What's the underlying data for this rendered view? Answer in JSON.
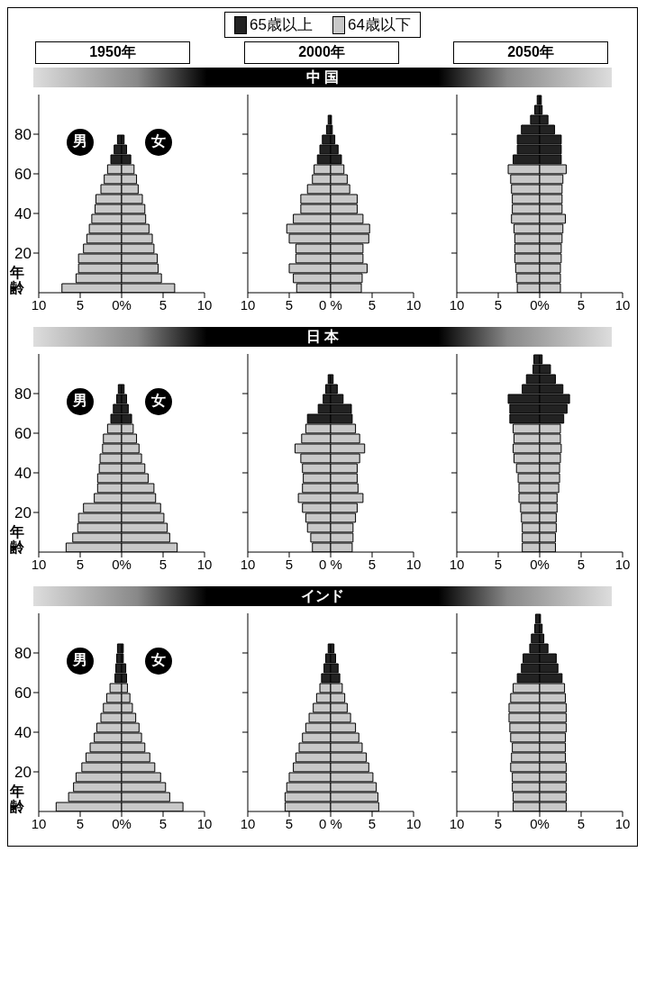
{
  "chart_data": [
    {
      "type": "bar",
      "orientation": "horizontal",
      "stacked": true,
      "subtitle": "1950年",
      "ylabel": "年齢",
      "annotations": [
        "男",
        "女"
      ],
      "legend": "top",
      "x": [
        2.5,
        7.5,
        12.5,
        17.5,
        22.5,
        27.5,
        32.5,
        37.5,
        42.5,
        47.5,
        52.5,
        57.5,
        62.5,
        67.5,
        72.5,
        77.5
      ],
      "xlim": [
        -10,
        10
      ],
      "xticks": [
        {
          "value": -10,
          "label": "10"
        },
        {
          "value": -5,
          "label": "5"
        },
        {
          "value": 0,
          "label": "0%"
        },
        {
          "value": 5,
          "label": "5"
        },
        {
          "value": 10,
          "label": "10"
        }
      ],
      "ylim": [
        0,
        100
      ],
      "yticks": [
        20,
        40,
        60,
        80
      ],
      "series": [
        {
          "name": "65歳以上",
          "color": "#222222",
          "values": [
            null,
            null,
            null,
            null,
            null,
            null,
            null,
            null,
            null,
            null,
            null,
            null,
            null,
            -1.3,
            -0.9,
            -0.5
          ]
        },
        {
          "name": "64歳以下",
          "color": "#c8c8c8",
          "values": [
            -7.2,
            -5.5,
            -5.2,
            -5.2,
            -4.6,
            -4.2,
            -3.9,
            -3.6,
            -3.2,
            -3.1,
            -2.5,
            -2.1,
            -1.7,
            null,
            null,
            null
          ]
        },
        {
          "color": "#222222",
          "values": [
            null,
            null,
            null,
            null,
            null,
            null,
            null,
            null,
            null,
            null,
            null,
            null,
            null,
            1.1,
            0.6,
            0.3
          ]
        },
        {
          "color": "#c8c8c8",
          "values": [
            6.4,
            4.8,
            4.4,
            4.3,
            3.9,
            3.7,
            3.3,
            2.9,
            2.8,
            2.5,
            2.0,
            1.8,
            1.5,
            null,
            null,
            null
          ]
        }
      ]
    },
    {
      "type": "bar",
      "orientation": "horizontal",
      "stacked": true,
      "title": "中 国",
      "subtitle": "2000年",
      "tick_labels": "x",
      "x": [
        2.5,
        7.5,
        12.5,
        17.5,
        22.5,
        27.5,
        32.5,
        37.5,
        42.5,
        47.5,
        52.5,
        57.5,
        62.5,
        67.5,
        72.5,
        77.5,
        82.5,
        87.5
      ],
      "xlim": [
        -10,
        10
      ],
      "xticks": [
        {
          "value": -10,
          "label": "10"
        },
        {
          "value": -5,
          "label": "5"
        },
        {
          "value": 0,
          "label": "0 %"
        },
        {
          "value": 5,
          "label": "5"
        },
        {
          "value": 10,
          "label": "10"
        }
      ],
      "ylim": [
        0,
        100
      ],
      "yticks": [
        {
          "value": 20,
          "label": null
        },
        {
          "value": 40,
          "label": null
        },
        {
          "value": 60,
          "label": null
        },
        {
          "value": 80,
          "label": null
        }
      ],
      "series": [
        {
          "color": "#222222",
          "values": [
            null,
            null,
            null,
            null,
            null,
            null,
            null,
            null,
            null,
            null,
            null,
            null,
            null,
            -1.6,
            -1.3,
            -1.0,
            -0.5,
            -0.3
          ]
        },
        {
          "color": "#c8c8c8",
          "values": [
            -4.1,
            -4.5,
            -5.0,
            -4.2,
            -4.2,
            -5.0,
            -5.3,
            -4.5,
            -3.6,
            -3.6,
            -2.8,
            -2.2,
            -2.0,
            null,
            null,
            null,
            null,
            null
          ]
        },
        {
          "color": "#222222",
          "values": [
            null,
            null,
            null,
            null,
            null,
            null,
            null,
            null,
            null,
            null,
            null,
            null,
            null,
            1.3,
            0.9,
            0.5,
            0.2,
            0.1
          ]
        },
        {
          "color": "#c8c8c8",
          "values": [
            3.7,
            3.8,
            4.4,
            3.9,
            3.9,
            4.6,
            4.7,
            3.9,
            3.2,
            3.2,
            2.3,
            2.0,
            1.6,
            null,
            null,
            null,
            null,
            null
          ]
        }
      ]
    },
    {
      "type": "bar",
      "orientation": "horizontal",
      "stacked": true,
      "subtitle": "2050年",
      "tick_labels": "x",
      "x": [
        2.5,
        7.5,
        12.5,
        17.5,
        22.5,
        27.5,
        32.5,
        37.5,
        42.5,
        47.5,
        52.5,
        57.5,
        62.5,
        67.5,
        72.5,
        77.5,
        82.5,
        87.5,
        92.5,
        97.5
      ],
      "xlim": [
        -10,
        10
      ],
      "xticks": [
        {
          "value": -10,
          "label": "10"
        },
        {
          "value": -5,
          "label": "5"
        },
        {
          "value": 0,
          "label": "0%"
        },
        {
          "value": 5,
          "label": "5"
        },
        {
          "value": 10,
          "label": "10"
        }
      ],
      "ylim": [
        0,
        100
      ],
      "yticks": [
        {
          "value": 20,
          "label": null
        },
        {
          "value": 40,
          "label": null
        },
        {
          "value": 60,
          "label": null
        },
        {
          "value": 80,
          "label": null
        }
      ],
      "series": [
        {
          "color": "#222222",
          "values": [
            null,
            null,
            null,
            null,
            null,
            null,
            null,
            null,
            null,
            null,
            null,
            null,
            null,
            -3.2,
            -2.7,
            -2.7,
            -2.2,
            -1.1,
            -0.6,
            -0.3
          ]
        },
        {
          "color": "#c8c8c8",
          "values": [
            -2.7,
            -2.8,
            -2.9,
            -3.0,
            -3.0,
            -3.0,
            -3.1,
            -3.4,
            -3.3,
            -3.3,
            -3.4,
            -3.5,
            -3.8,
            null,
            null,
            null,
            null,
            null,
            null,
            null
          ]
        },
        {
          "color": "#222222",
          "values": [
            null,
            null,
            null,
            null,
            null,
            null,
            null,
            null,
            null,
            null,
            null,
            null,
            null,
            2.6,
            2.6,
            2.6,
            1.8,
            1.0,
            0.3,
            0.2
          ]
        },
        {
          "color": "#c8c8c8",
          "values": [
            2.5,
            2.5,
            2.5,
            2.6,
            2.6,
            2.7,
            2.8,
            3.1,
            2.7,
            2.7,
            2.7,
            2.8,
            3.2,
            null,
            null,
            null,
            null,
            null,
            null,
            null
          ]
        }
      ]
    },
    {
      "type": "bar",
      "orientation": "horizontal",
      "stacked": true,
      "ylabel": "年齢",
      "annotations": [
        "男",
        "女"
      ],
      "x": [
        2.5,
        7.5,
        12.5,
        17.5,
        22.5,
        27.5,
        32.5,
        37.5,
        42.5,
        47.5,
        52.5,
        57.5,
        62.5,
        67.5,
        72.5,
        77.5,
        82.5
      ],
      "xlim": [
        -10,
        10
      ],
      "xticks": [
        {
          "value": -10,
          "label": "10"
        },
        {
          "value": -5,
          "label": "5"
        },
        {
          "value": 0,
          "label": "0%"
        },
        {
          "value": 5,
          "label": "5"
        },
        {
          "value": 10,
          "label": "10"
        }
      ],
      "ylim": [
        0,
        100
      ],
      "yticks": [
        20,
        40,
        60,
        80
      ],
      "series": [
        {
          "color": "#222222",
          "values": [
            null,
            null,
            null,
            null,
            null,
            null,
            null,
            null,
            null,
            null,
            null,
            null,
            null,
            -1.3,
            -1.0,
            -0.6,
            -0.4
          ]
        },
        {
          "color": "#c8c8c8",
          "values": [
            -6.7,
            -5.9,
            -5.3,
            -5.2,
            -4.6,
            -3.3,
            -2.9,
            -2.9,
            -2.7,
            -2.6,
            -2.3,
            -2.2,
            -1.7,
            null,
            null,
            null,
            null
          ]
        },
        {
          "color": "#222222",
          "values": [
            null,
            null,
            null,
            null,
            null,
            null,
            null,
            null,
            null,
            null,
            null,
            null,
            null,
            1.2,
            0.8,
            0.6,
            0.3
          ]
        },
        {
          "color": "#c8c8c8",
          "values": [
            6.7,
            5.8,
            5.5,
            5.1,
            4.7,
            4.1,
            3.9,
            3.2,
            2.8,
            2.4,
            2.1,
            1.8,
            1.4,
            null,
            null,
            null,
            null
          ]
        }
      ]
    },
    {
      "type": "bar",
      "orientation": "horizontal",
      "stacked": true,
      "title": "日 本",
      "tick_labels": "x",
      "x": [
        2.5,
        7.5,
        12.5,
        17.5,
        22.5,
        27.5,
        32.5,
        37.5,
        42.5,
        47.5,
        52.5,
        57.5,
        62.5,
        67.5,
        72.5,
        77.5,
        82.5,
        87.5
      ],
      "xlim": [
        -10,
        10
      ],
      "xticks": [
        {
          "value": -10,
          "label": "10"
        },
        {
          "value": -5,
          "label": "5"
        },
        {
          "value": 0,
          "label": "0 %"
        },
        {
          "value": 5,
          "label": "5"
        },
        {
          "value": 10,
          "label": "10"
        }
      ],
      "ylim": [
        0,
        100
      ],
      "yticks": [
        {
          "value": 20,
          "label": null
        },
        {
          "value": 40,
          "label": null
        },
        {
          "value": 60,
          "label": null
        },
        {
          "value": 80,
          "label": null
        }
      ],
      "series": [
        {
          "color": "#222222",
          "values": [
            null,
            null,
            null,
            null,
            null,
            null,
            null,
            null,
            null,
            null,
            null,
            null,
            null,
            -2.8,
            -1.5,
            -0.9,
            -0.6,
            -0.3
          ]
        },
        {
          "color": "#c8c8c8",
          "values": [
            -2.2,
            -2.4,
            -2.8,
            -3.0,
            -3.4,
            -3.9,
            -3.4,
            -3.3,
            -3.4,
            -3.6,
            -4.3,
            -3.5,
            -3.0,
            null,
            null,
            null,
            null,
            null
          ]
        },
        {
          "color": "#222222",
          "values": [
            null,
            null,
            null,
            null,
            null,
            null,
            null,
            null,
            null,
            null,
            null,
            null,
            null,
            2.6,
            2.5,
            1.5,
            0.8,
            0.3
          ]
        },
        {
          "color": "#c8c8c8",
          "values": [
            2.6,
            2.7,
            2.7,
            3.0,
            3.2,
            3.9,
            3.3,
            3.2,
            3.2,
            3.5,
            4.1,
            3.5,
            3.0,
            null,
            null,
            null,
            null,
            null
          ]
        }
      ]
    },
    {
      "type": "bar",
      "orientation": "horizontal",
      "stacked": true,
      "tick_labels": "x",
      "x": [
        2.5,
        7.5,
        12.5,
        17.5,
        22.5,
        27.5,
        32.5,
        37.5,
        42.5,
        47.5,
        52.5,
        57.5,
        62.5,
        67.5,
        72.5,
        77.5,
        82.5,
        87.5,
        92.5,
        97.5
      ],
      "xlim": [
        -10,
        10
      ],
      "xticks": [
        {
          "value": -10,
          "label": "10"
        },
        {
          "value": -5,
          "label": "5"
        },
        {
          "value": 0,
          "label": "0%"
        },
        {
          "value": 5,
          "label": "5"
        },
        {
          "value": 10,
          "label": "10"
        }
      ],
      "ylim": [
        0,
        100
      ],
      "yticks": [
        {
          "value": 20,
          "label": null
        },
        {
          "value": 40,
          "label": null
        },
        {
          "value": 60,
          "label": null
        },
        {
          "value": 80,
          "label": null
        }
      ],
      "series": [
        {
          "color": "#222222",
          "values": [
            null,
            null,
            null,
            null,
            null,
            null,
            null,
            null,
            null,
            null,
            null,
            null,
            null,
            -3.6,
            -3.6,
            -3.8,
            -2.1,
            -1.6,
            -0.8,
            -0.7
          ]
        },
        {
          "color": "#c8c8c8",
          "values": [
            -2.1,
            -2.1,
            -2.1,
            -2.2,
            -2.3,
            -2.5,
            -2.5,
            -2.6,
            -2.8,
            -3.1,
            -3.2,
            -3.1,
            -3.2,
            null,
            null,
            null,
            null,
            null,
            null,
            null
          ]
        },
        {
          "color": "#222222",
          "values": [
            null,
            null,
            null,
            null,
            null,
            null,
            null,
            null,
            null,
            null,
            null,
            null,
            null,
            2.9,
            3.3,
            3.6,
            2.8,
            1.9,
            1.3,
            0.3
          ]
        },
        {
          "color": "#c8c8c8",
          "values": [
            1.9,
            1.9,
            2.0,
            2.0,
            2.1,
            2.1,
            2.3,
            2.4,
            2.4,
            2.5,
            2.6,
            2.5,
            2.5,
            null,
            null,
            null,
            null,
            null,
            null,
            null
          ]
        }
      ]
    },
    {
      "type": "bar",
      "orientation": "horizontal",
      "stacked": true,
      "ylabel": "年齢",
      "annotations": [
        "男",
        "女"
      ],
      "x": [
        2.5,
        7.5,
        12.5,
        17.5,
        22.5,
        27.5,
        32.5,
        37.5,
        42.5,
        47.5,
        52.5,
        57.5,
        62.5,
        67.5,
        72.5,
        77.5,
        82.5
      ],
      "xlim": [
        -10,
        10
      ],
      "xticks": [
        {
          "value": -10,
          "label": "10"
        },
        {
          "value": -5,
          "label": "5"
        },
        {
          "value": 0,
          "label": "0%"
        },
        {
          "value": 5,
          "label": "5"
        },
        {
          "value": 10,
          "label": "10"
        }
      ],
      "ylim": [
        0,
        100
      ],
      "yticks": [
        20,
        40,
        60,
        80
      ],
      "series": [
        {
          "color": "#222222",
          "values": [
            null,
            null,
            null,
            null,
            null,
            null,
            null,
            null,
            null,
            null,
            null,
            null,
            null,
            -0.8,
            -0.7,
            -0.6,
            -0.5
          ]
        },
        {
          "color": "#c8c8c8",
          "values": [
            -7.9,
            -6.4,
            -5.8,
            -5.5,
            -4.8,
            -4.3,
            -3.8,
            -3.3,
            -3.0,
            -2.5,
            -2.2,
            -1.8,
            -1.4,
            null,
            null,
            null,
            null
          ]
        },
        {
          "color": "#222222",
          "values": [
            null,
            null,
            null,
            null,
            null,
            null,
            null,
            null,
            null,
            null,
            null,
            null,
            null,
            0.6,
            0.5,
            0.2,
            0.2
          ]
        },
        {
          "color": "#c8c8c8",
          "values": [
            7.4,
            5.8,
            5.3,
            4.7,
            4.0,
            3.4,
            2.8,
            2.4,
            2.1,
            1.7,
            1.3,
            1.0,
            0.7,
            null,
            null,
            null,
            null
          ]
        }
      ]
    },
    {
      "type": "bar",
      "orientation": "horizontal",
      "stacked": true,
      "title": "インド",
      "tick_labels": "x",
      "x": [
        2.5,
        7.5,
        12.5,
        17.5,
        22.5,
        27.5,
        32.5,
        37.5,
        42.5,
        47.5,
        52.5,
        57.5,
        62.5,
        67.5,
        72.5,
        77.5,
        82.5
      ],
      "xlim": [
        -10,
        10
      ],
      "xticks": [
        {
          "value": -10,
          "label": "10"
        },
        {
          "value": -5,
          "label": "5"
        },
        {
          "value": 0,
          "label": "0 %"
        },
        {
          "value": 5,
          "label": "5"
        },
        {
          "value": 10,
          "label": "10"
        }
      ],
      "ylim": [
        0,
        100
      ],
      "yticks": [
        {
          "value": 20,
          "label": null
        },
        {
          "value": 40,
          "label": null
        },
        {
          "value": 60,
          "label": null
        },
        {
          "value": 80,
          "label": null
        }
      ],
      "series": [
        {
          "color": "#222222",
          "values": [
            null,
            null,
            null,
            null,
            null,
            null,
            null,
            null,
            null,
            null,
            null,
            null,
            null,
            -1.1,
            -0.8,
            -0.6,
            -0.3
          ]
        },
        {
          "color": "#c8c8c8",
          "values": [
            -5.5,
            -5.5,
            -5.3,
            -5.0,
            -4.5,
            -4.2,
            -3.8,
            -3.4,
            -3.0,
            -2.6,
            -2.1,
            -1.7,
            -1.3,
            null,
            null,
            null,
            null
          ]
        },
        {
          "color": "#222222",
          "values": [
            null,
            null,
            null,
            null,
            null,
            null,
            null,
            null,
            null,
            null,
            null,
            null,
            null,
            1.1,
            0.9,
            0.6,
            0.4
          ]
        },
        {
          "color": "#c8c8c8",
          "values": [
            5.8,
            5.7,
            5.5,
            5.1,
            4.6,
            4.3,
            3.8,
            3.4,
            3.0,
            2.4,
            2.0,
            1.7,
            1.4,
            null,
            null,
            null,
            null
          ]
        }
      ]
    },
    {
      "type": "bar",
      "orientation": "horizontal",
      "stacked": true,
      "tick_labels": "x",
      "x": [
        2.5,
        7.5,
        12.5,
        17.5,
        22.5,
        27.5,
        32.5,
        37.5,
        42.5,
        47.5,
        52.5,
        57.5,
        62.5,
        67.5,
        72.5,
        77.5,
        82.5,
        87.5,
        92.5,
        97.5
      ],
      "xlim": [
        -10,
        10
      ],
      "xticks": [
        {
          "value": -10,
          "label": "10"
        },
        {
          "value": -5,
          "label": "5"
        },
        {
          "value": 0,
          "label": "0%"
        },
        {
          "value": 5,
          "label": "5"
        },
        {
          "value": 10,
          "label": "10"
        }
      ],
      "ylim": [
        0,
        100
      ],
      "yticks": [
        {
          "value": 20,
          "label": null
        },
        {
          "value": 40,
          "label": null
        },
        {
          "value": 60,
          "label": null
        },
        {
          "value": 80,
          "label": null
        }
      ],
      "series": [
        {
          "color": "#222222",
          "values": [
            null,
            null,
            null,
            null,
            null,
            null,
            null,
            null,
            null,
            null,
            null,
            null,
            null,
            -2.7,
            -2.2,
            -2.0,
            -1.2,
            -1.0,
            -0.6,
            -0.5
          ]
        },
        {
          "color": "#c8c8c8",
          "values": [
            -3.2,
            -3.2,
            -3.3,
            -3.3,
            -3.5,
            -3.4,
            -3.3,
            -3.5,
            -3.6,
            -3.7,
            -3.7,
            -3.5,
            -3.2,
            null,
            null,
            null,
            null,
            null,
            null,
            null
          ]
        },
        {
          "color": "#222222",
          "values": [
            null,
            null,
            null,
            null,
            null,
            null,
            null,
            null,
            null,
            null,
            null,
            null,
            null,
            2.7,
            2.2,
            2.0,
            1.0,
            0.5,
            0.3,
            0.1
          ]
        },
        {
          "color": "#c8c8c8",
          "values": [
            3.2,
            3.2,
            3.2,
            3.2,
            3.2,
            3.1,
            3.1,
            3.1,
            3.2,
            3.2,
            3.2,
            3.1,
            3.0,
            null,
            null,
            null,
            null,
            null,
            null,
            null
          ]
        }
      ]
    }
  ]
}
